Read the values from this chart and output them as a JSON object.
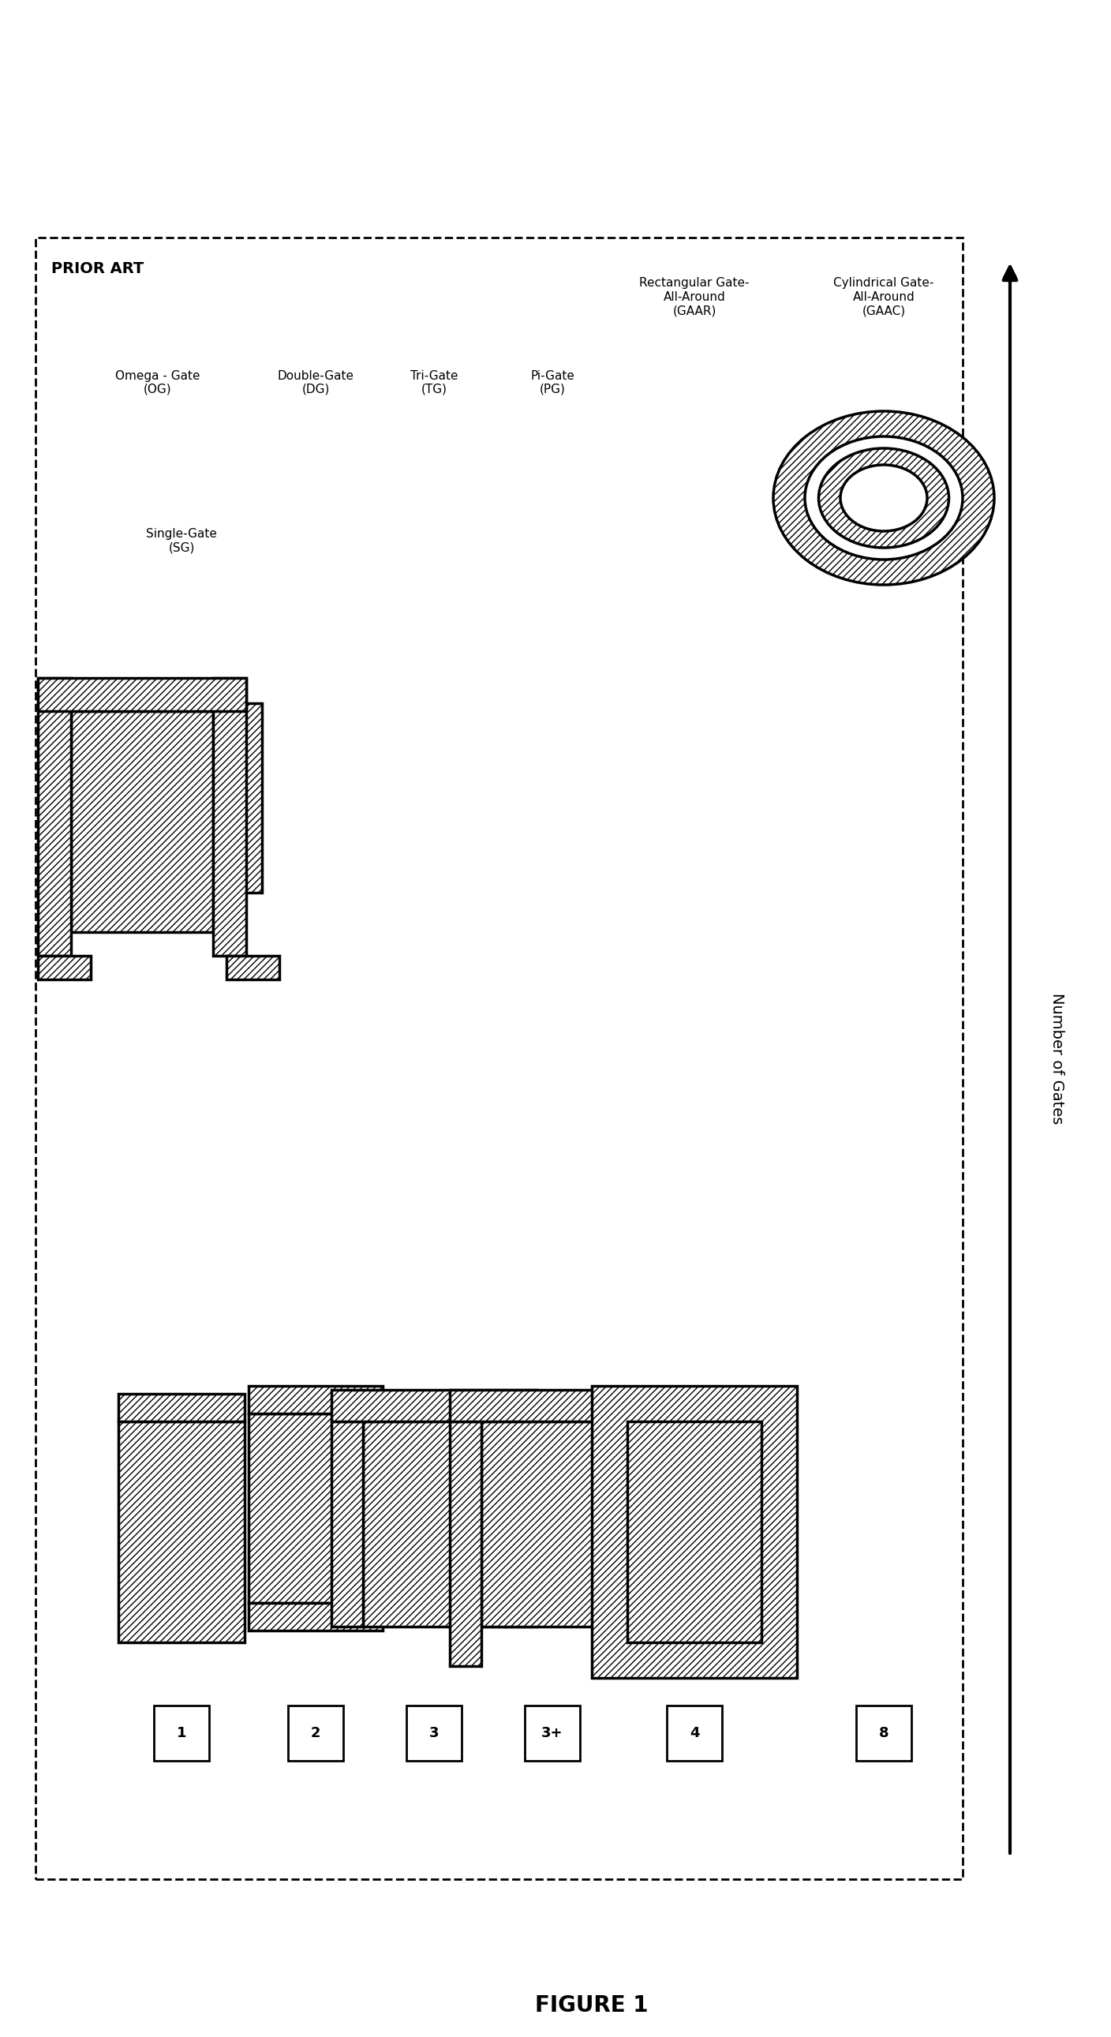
{
  "title": "FIGURE 1",
  "prior_art_label": "PRIOR ART",
  "arrow_label": "Number of Gates",
  "figure_bg": "#ffffff",
  "line_color": "#000000",
  "hatch_pattern": "////",
  "gate_labels": [
    {
      "name": "Single-Gate\n(SG)",
      "num": "1"
    },
    {
      "name": "Double-Gate\n(DG)",
      "num": "2"
    },
    {
      "name": "Tri-Gate\n(TG)",
      "num": "3"
    },
    {
      "name": "Pi-Gate\n(PG)",
      "num": "3+"
    },
    {
      "name": "Rectangular Gate-\nAll-Around\n(GAAR)",
      "num": "4"
    },
    {
      "name": "Omega - Gate\n(OG)",
      "num": null
    },
    {
      "name": "Cylindrical Gate-\nAll-Around\n(GAAC)",
      "num": "8"
    }
  ]
}
